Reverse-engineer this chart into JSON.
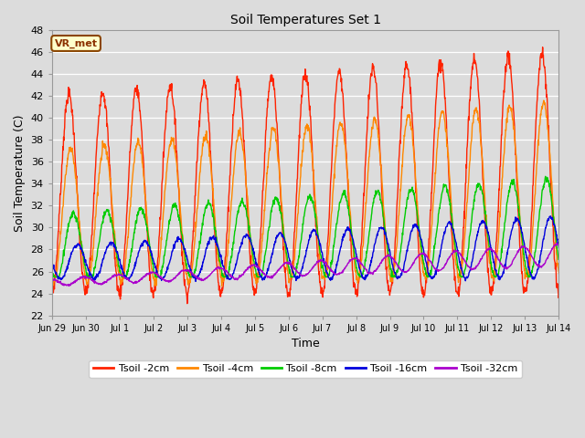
{
  "title": "Soil Temperatures Set 1",
  "xlabel": "Time",
  "ylabel": "Soil Temperature (C)",
  "ylim": [
    22,
    48
  ],
  "yticks": [
    22,
    24,
    26,
    28,
    30,
    32,
    34,
    36,
    38,
    40,
    42,
    44,
    46,
    48
  ],
  "background_color": "#dcdcdc",
  "plot_bg_color": "#dcdcdc",
  "colors": {
    "Tsoil -2cm": "#ff2200",
    "Tsoil -4cm": "#ff8800",
    "Tsoil -8cm": "#00cc00",
    "Tsoil -16cm": "#0000dd",
    "Tsoil -32cm": "#aa00cc"
  },
  "annotation_text": "VR_met",
  "num_days": 15,
  "points_per_day": 96,
  "tick_labels": [
    "Jun 29",
    "Jun 30",
    "Jul 1",
    "Jul 2",
    "Jul 3",
    "Jul 4",
    "Jul 5",
    "Jul 6",
    "Jul 7",
    "Jul 8",
    "Jul 9",
    "Jul 10",
    "Jul 11",
    "Jul 12",
    "Jul 13",
    "Jul 14"
  ]
}
